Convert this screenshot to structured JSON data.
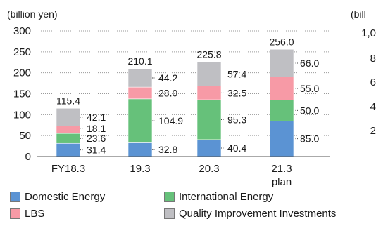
{
  "chart_data": {
    "type": "bar",
    "stacked": true,
    "unit_label": "(billion yen)",
    "right_panel_label": "(bill",
    "categories": [
      "FY18.3",
      "19.3",
      "20.3",
      "21.3"
    ],
    "category_sublabels": [
      "",
      "",
      "",
      "plan"
    ],
    "series": [
      {
        "name": "Domestic Energy",
        "color": "#5b93d3",
        "values": [
          31.4,
          32.8,
          40.4,
          85.0
        ]
      },
      {
        "name": "International Energy",
        "color": "#66c17a",
        "values": [
          23.6,
          104.9,
          95.3,
          50.0
        ]
      },
      {
        "name": "LBS",
        "color": "#f79aa6",
        "values": [
          18.1,
          28.0,
          32.5,
          55.0
        ]
      },
      {
        "name": "Quality Improvement Investments",
        "color": "#bfbfc3",
        "values": [
          42.1,
          44.2,
          57.4,
          66.0
        ]
      }
    ],
    "value_labels": [
      [
        "31.4",
        "32.8",
        "40.4",
        "85.0"
      ],
      [
        "23.6",
        "104.9",
        "95.3",
        "50.0"
      ],
      [
        "18.1",
        "28.0",
        "32.5",
        "55.0"
      ],
      [
        "42.1",
        "44.2",
        "57.4",
        "66.0"
      ]
    ],
    "totals": [
      "115.4",
      "210.1",
      "225.8",
      "256.0"
    ],
    "y_ticks": [
      "0",
      "50",
      "100",
      "150",
      "200",
      "250",
      "300"
    ],
    "ylim": [
      0,
      300
    ],
    "right_axis_ticks": [
      "1,0",
      "8",
      "6",
      "4",
      "2"
    ],
    "grid": "dotted",
    "legend_position": "bottom"
  }
}
